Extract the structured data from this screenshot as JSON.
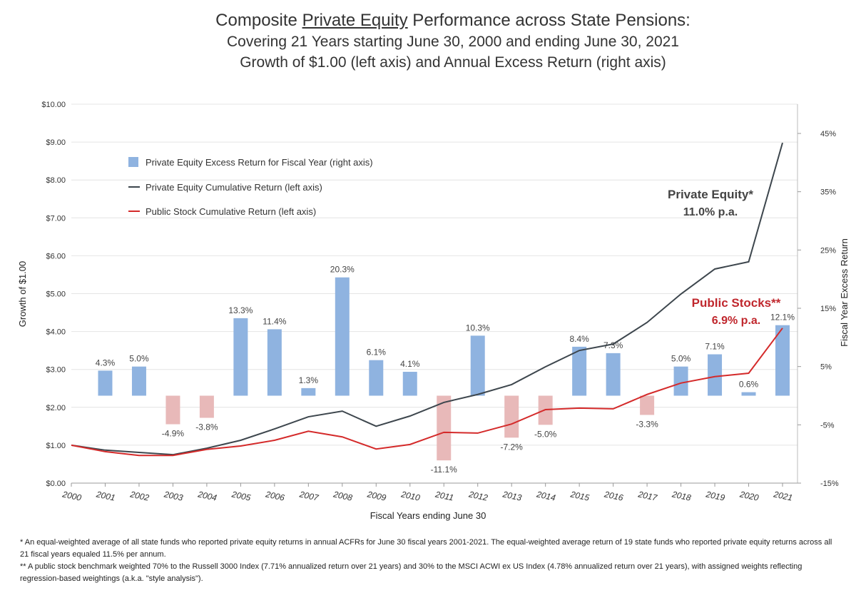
{
  "chart_data": {
    "type": "bar+line",
    "title_pre": "Composite ",
    "title_underlined": "Private Equity",
    "title_post": " Performance across State Pensions:",
    "subtitle1": "Covering 21 Years starting June 30, 2000 and ending June 30, 2021",
    "subtitle2": "Growth of $1.00 (left axis) and Annual Excess Return (right axis)",
    "xlabel": "Fiscal Years ending June 30",
    "ylabel_left": "Growth of $1.00",
    "ylabel_right": "Fiscal Year Excess Return",
    "ylim_left": [
      0,
      10
    ],
    "ylim_right": [
      -15,
      45
    ],
    "left_ticks": [
      "$0.00",
      "$1.00",
      "$2.00",
      "$3.00",
      "$4.00",
      "$5.00",
      "$6.00",
      "$7.00",
      "$8.00",
      "$9.00",
      "$10.00"
    ],
    "right_ticks": [
      "-15%",
      "-5%",
      "5%",
      "15%",
      "25%",
      "35%",
      "45%"
    ],
    "grid": true,
    "legend_position": "top-left",
    "years": [
      2000,
      2001,
      2002,
      2003,
      2004,
      2005,
      2006,
      2007,
      2008,
      2009,
      2010,
      2011,
      2012,
      2013,
      2014,
      2015,
      2016,
      2017,
      2018,
      2019,
      2020,
      2021
    ],
    "bars": {
      "name": "Private Equity Excess Return for Fiscal Year (right axis)",
      "years": [
        2001,
        2002,
        2003,
        2004,
        2005,
        2006,
        2007,
        2008,
        2009,
        2010,
        2011,
        2012,
        2013,
        2014,
        2015,
        2016,
        2017,
        2018,
        2019,
        2020,
        2021
      ],
      "values": [
        4.3,
        5.0,
        -4.9,
        -3.8,
        13.3,
        11.4,
        1.3,
        20.3,
        6.1,
        4.1,
        -11.1,
        10.3,
        -7.2,
        -5.0,
        8.4,
        7.3,
        -3.3,
        5.0,
        7.1,
        0.6,
        12.1
      ],
      "labels": [
        "4.3%",
        "5.0%",
        "-4.9%",
        "-3.8%",
        "13.3%",
        "11.4%",
        "1.3%",
        "20.3%",
        "6.1%",
        "4.1%",
        "-11.1%",
        "10.3%",
        "-7.2%",
        "-5.0%",
        "8.4%",
        "7.3%",
        "-3.3%",
        "5.0%",
        "7.1%",
        "0.6%",
        "12.1%"
      ],
      "positive_color": "#8fb3e0",
      "negative_color": "#e8b9b9"
    },
    "series": [
      {
        "name": "Private Equity Cumulative Return (left axis)",
        "color": "#3d464d",
        "values": [
          1.0,
          0.87,
          0.81,
          0.75,
          0.92,
          1.13,
          1.43,
          1.75,
          1.9,
          1.5,
          1.77,
          2.13,
          2.34,
          2.6,
          3.07,
          3.5,
          3.67,
          4.24,
          4.99,
          5.65,
          5.84,
          8.98
        ]
      },
      {
        "name": "Public Stock Cumulative Return (left axis)",
        "color": "#d42a2a",
        "values": [
          1.0,
          0.83,
          0.73,
          0.73,
          0.89,
          0.98,
          1.13,
          1.37,
          1.22,
          0.9,
          1.02,
          1.34,
          1.32,
          1.56,
          1.94,
          1.98,
          1.96,
          2.34,
          2.64,
          2.81,
          2.9,
          4.09
        ]
      }
    ],
    "annotations": {
      "pe_name": "Private Equity*",
      "pe_rate": "11.0% p.a.",
      "pub_name": "Public Stocks**",
      "pub_rate": "6.9% p.a."
    }
  },
  "footnotes": [
    "*  An equal-weighted average of all state funds who reported  private equity returns in annual ACFRs for June 30 fiscal years 2001-2021.  The equal-weighted average return of 19 state funds who reported private equity returns across all 21 fiscal years equaled 11.5% per annum.",
    "** A public stock benchmark weighted 70% to the Russell 3000 Index (7.71% annualized return over 21 years) and 30% to the MSCI ACWI ex US Index (4.78% annualized return over 21 years), with assigned weights reflecting regression-based weightings (a.k.a. \"style analysis\")."
  ]
}
